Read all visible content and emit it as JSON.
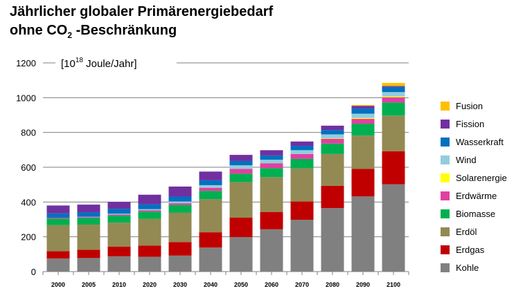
{
  "chart_data": {
    "type": "bar",
    "stacked": true,
    "title_line1": "Jährlicher globaler Primärenergiebedarf",
    "title_line2_pre": "ohne CO",
    "title_line2_sub": "2",
    "title_line2_post": " -Beschränkung",
    "unit_pre": "[10",
    "unit_sup": "18",
    "unit_post": " Joule/Jahr]",
    "ylim": [
      0,
      1200
    ],
    "yticks": [
      "0",
      "200",
      "400",
      "600",
      "800",
      "1000",
      "1200"
    ],
    "grid": true,
    "legend_position": "right",
    "categories": [
      "2000",
      "2005",
      "2010",
      "2020",
      "2030",
      "2040",
      "2050",
      "2060",
      "2070",
      "2080",
      "2090",
      "2100"
    ],
    "series": [
      {
        "name": "Kohle",
        "color": "#808080",
        "values": [
          75,
          78,
          88,
          85,
          92,
          138,
          198,
          243,
          298,
          365,
          432,
          502
        ]
      },
      {
        "name": "Erdgas",
        "color": "#c00000",
        "values": [
          42,
          47,
          55,
          65,
          78,
          88,
          112,
          100,
          105,
          128,
          158,
          190
        ]
      },
      {
        "name": "Erdöl",
        "color": "#938953",
        "values": [
          150,
          145,
          138,
          153,
          168,
          190,
          205,
          200,
          190,
          183,
          192,
          205
        ]
      },
      {
        "name": "Biomasse",
        "color": "#00b050",
        "values": [
          38,
          38,
          42,
          42,
          45,
          48,
          48,
          52,
          55,
          60,
          68,
          75
        ]
      },
      {
        "name": "Erdwärme",
        "color": "#e040a0",
        "values": [
          5,
          5,
          6,
          8,
          10,
          18,
          28,
          28,
          28,
          28,
          28,
          30
        ]
      },
      {
        "name": "Solarenergie",
        "color": "#ffff00",
        "values": [
          0,
          0,
          0,
          0,
          0,
          0,
          0,
          0,
          0,
          3,
          5,
          5
        ]
      },
      {
        "name": "Wind",
        "color": "#93cddd",
        "values": [
          0,
          2,
          4,
          6,
          10,
          15,
          20,
          20,
          22,
          22,
          25,
          25
        ]
      },
      {
        "name": "Wasserkraft",
        "color": "#0070c0",
        "values": [
          25,
          25,
          28,
          28,
          28,
          28,
          25,
          25,
          25,
          25,
          30,
          30
        ]
      },
      {
        "name": "Fission",
        "color": "#7030a0",
        "values": [
          45,
          45,
          40,
          55,
          58,
          50,
          35,
          30,
          25,
          25,
          15,
          5
        ]
      },
      {
        "name": "Fusion",
        "color": "#ffc000",
        "values": [
          0,
          0,
          0,
          0,
          0,
          0,
          0,
          0,
          0,
          0,
          5,
          18
        ]
      }
    ]
  }
}
